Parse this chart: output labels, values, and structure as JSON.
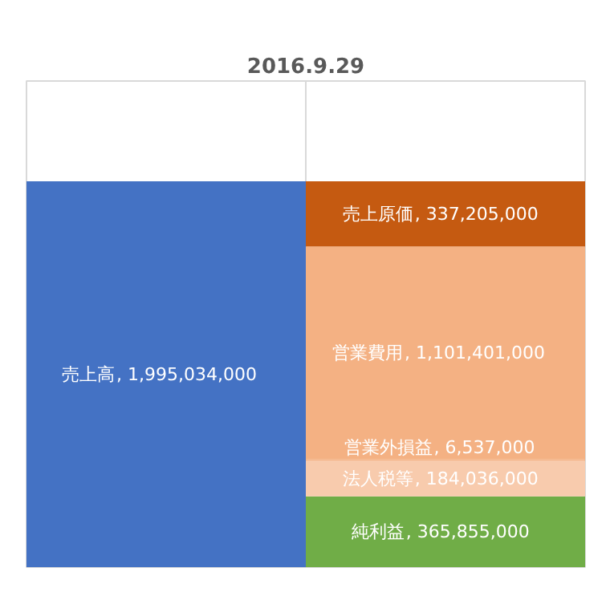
{
  "chart_data": {
    "type": "bar",
    "title": "2016.9.29",
    "categories": [
      null,
      null
    ],
    "stacked": true,
    "grid": "x",
    "tick_labels": false,
    "series": [
      {
        "name": "売上高",
        "color": "#4472c4",
        "values": [
          1995034000,
          null
        ],
        "value_labels": [
          ", 1,995,034,000",
          null
        ]
      },
      {
        "name": "純利益",
        "color": "#70ad47",
        "values": [
          null,
          365855000
        ],
        "value_labels": [
          null,
          ", 365,855,000"
        ]
      },
      {
        "name": "法人税等",
        "color": "#f8cbad",
        "values": [
          null,
          184036000
        ],
        "value_labels": [
          null,
          ", 184,036,000"
        ]
      },
      {
        "name": "営業外損益",
        "color": "#f4b183",
        "values": [
          null,
          6537000
        ],
        "value_labels": [
          null,
          ", 6,537,000"
        ]
      },
      {
        "name": "営業費用",
        "color": "#f4b183",
        "values": [
          null,
          1101401000
        ],
        "value_labels": [
          null,
          ", 1,101,401,000"
        ]
      },
      {
        "name": "売上原価",
        "color": "#c55a11",
        "values": [
          null,
          337205000
        ],
        "value_labels": [
          null,
          ", 337,205,000"
        ]
      }
    ]
  }
}
